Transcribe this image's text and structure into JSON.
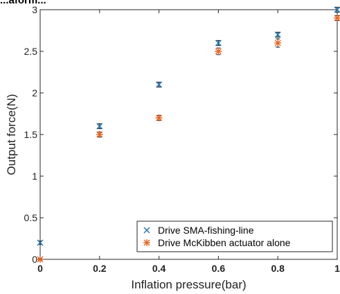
{
  "header_fragment": "...aform...",
  "chart_data": {
    "type": "scatter",
    "title": "",
    "xlabel": "Inflation pressure(bar)",
    "ylabel": "Output force(N)",
    "xlim": [
      0,
      1
    ],
    "ylim": [
      0,
      3
    ],
    "x_ticks": [
      "0",
      "0.2",
      "0.4",
      "0.6",
      "0.8",
      "1"
    ],
    "y_ticks": [
      "0",
      "0.5",
      "1",
      "1.5",
      "2",
      "2.5",
      "3"
    ],
    "grid": false,
    "legend_position": "bottom-right",
    "series": [
      {
        "name": "Drive SMA-fishing-line",
        "marker": "x",
        "color": "#1f77b4",
        "x": [
          0,
          0.2,
          0.4,
          0.6,
          0.8,
          1.0
        ],
        "y": [
          0.2,
          1.6,
          2.1,
          2.6,
          2.7,
          3.0
        ],
        "err": [
          0.02,
          0.03,
          0.03,
          0.03,
          0.03,
          0.03
        ]
      },
      {
        "name": "Drive McKibben actuator alone",
        "marker": "asterisk",
        "color": "#e8641e",
        "x": [
          0,
          0.2,
          0.4,
          0.6,
          0.8,
          1.0
        ],
        "y": [
          0.0,
          1.5,
          1.7,
          2.5,
          2.6,
          2.9
        ],
        "err": [
          0.01,
          0.03,
          0.03,
          0.04,
          0.05,
          0.03
        ]
      }
    ]
  }
}
